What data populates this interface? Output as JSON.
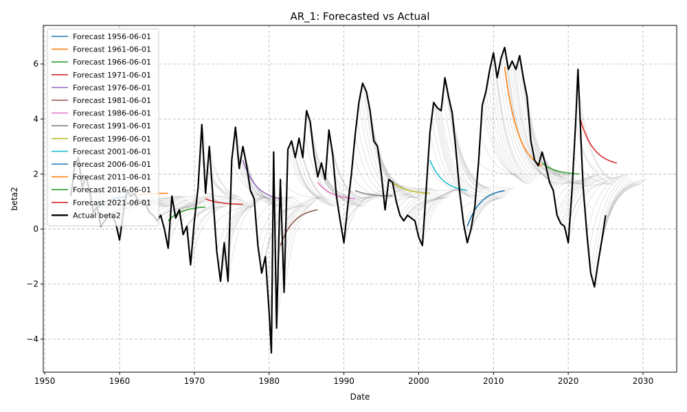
{
  "chart_data": {
    "type": "line",
    "title": "AR_1: Forecasted vs Actual",
    "xlabel": "Date",
    "ylabel": "beta2",
    "xlim": [
      1949.8,
      2034.5
    ],
    "ylim": [
      -5.2,
      7.4
    ],
    "x_ticks": [
      "1950",
      "1960",
      "1970",
      "1980",
      "1990",
      "2000",
      "2010",
      "2020",
      "2030"
    ],
    "y_ticks": [
      "−4",
      "−2",
      "0",
      "2",
      "4",
      "6"
    ],
    "grid": true,
    "legend_position": "upper left",
    "colors": {
      "actual": "#000000",
      "background_forecasts": "#808080",
      "grid": "#b0b0b0"
    },
    "actual": {
      "name": "Actual beta2",
      "points": [
        [
          1953.5,
          1.2
        ],
        [
          1954.0,
          2.3
        ],
        [
          1954.5,
          2.6
        ],
        [
          1955.0,
          1.5
        ],
        [
          1955.5,
          1.9
        ],
        [
          1956.0,
          1.4
        ],
        [
          1956.5,
          0.6
        ],
        [
          1957.0,
          0.8
        ],
        [
          1957.5,
          0.1
        ],
        [
          1958.0,
          0.3
        ],
        [
          1958.5,
          0.5
        ],
        [
          1959.0,
          0.5
        ],
        [
          1959.5,
          0.2
        ],
        [
          1960.0,
          -0.4
        ],
        [
          1960.5,
          0.6
        ],
        [
          1961.0,
          1.4
        ],
        [
          1961.5,
          1.2
        ],
        [
          1962.0,
          1.3
        ],
        [
          1962.5,
          1.0
        ],
        [
          1963.0,
          1.0
        ],
        [
          1963.5,
          0.9
        ],
        [
          1964.0,
          0.6
        ],
        [
          1964.5,
          0.5
        ],
        [
          1965.0,
          0.3
        ],
        [
          1965.5,
          0.5
        ],
        [
          1966.0,
          0.0
        ],
        [
          1966.5,
          -0.7
        ],
        [
          1967.0,
          1.2
        ],
        [
          1967.5,
          0.4
        ],
        [
          1968.0,
          0.7
        ],
        [
          1968.5,
          -0.2
        ],
        [
          1969.0,
          0.1
        ],
        [
          1969.5,
          -1.3
        ],
        [
          1970.0,
          0.3
        ],
        [
          1970.5,
          1.5
        ],
        [
          1971.0,
          3.8
        ],
        [
          1971.5,
          1.3
        ],
        [
          1972.0,
          3.0
        ],
        [
          1972.5,
          1.1
        ],
        [
          1973.0,
          -0.8
        ],
        [
          1973.5,
          -1.9
        ],
        [
          1974.0,
          -0.5
        ],
        [
          1974.5,
          -1.9
        ],
        [
          1975.0,
          2.5
        ],
        [
          1975.5,
          3.7
        ],
        [
          1976.0,
          2.2
        ],
        [
          1976.5,
          3.0
        ],
        [
          1977.0,
          2.3
        ],
        [
          1977.5,
          1.4
        ],
        [
          1978.0,
          1.1
        ],
        [
          1978.5,
          -0.6
        ],
        [
          1979.0,
          -1.6
        ],
        [
          1979.5,
          -1.0
        ],
        [
          1980.0,
          -3.0
        ],
        [
          1980.3,
          -4.5
        ],
        [
          1980.6,
          2.8
        ],
        [
          1981.0,
          -3.6
        ],
        [
          1981.5,
          1.8
        ],
        [
          1982.0,
          -2.3
        ],
        [
          1982.5,
          2.9
        ],
        [
          1983.0,
          3.2
        ],
        [
          1983.5,
          2.6
        ],
        [
          1984.0,
          3.3
        ],
        [
          1984.5,
          2.6
        ],
        [
          1985.0,
          4.3
        ],
        [
          1985.5,
          3.9
        ],
        [
          1986.0,
          2.7
        ],
        [
          1986.5,
          1.9
        ],
        [
          1987.0,
          2.4
        ],
        [
          1987.5,
          1.8
        ],
        [
          1988.0,
          3.6
        ],
        [
          1988.5,
          2.7
        ],
        [
          1989.0,
          1.2
        ],
        [
          1989.5,
          0.3
        ],
        [
          1990.0,
          -0.5
        ],
        [
          1990.5,
          0.8
        ],
        [
          1991.0,
          2.0
        ],
        [
          1991.5,
          3.4
        ],
        [
          1992.0,
          4.6
        ],
        [
          1992.5,
          5.3
        ],
        [
          1993.0,
          5.0
        ],
        [
          1993.5,
          4.3
        ],
        [
          1994.0,
          3.2
        ],
        [
          1994.5,
          3.0
        ],
        [
          1995.0,
          2.0
        ],
        [
          1995.5,
          0.7
        ],
        [
          1996.0,
          1.8
        ],
        [
          1996.5,
          1.7
        ],
        [
          1997.0,
          1.0
        ],
        [
          1997.5,
          0.5
        ],
        [
          1998.0,
          0.3
        ],
        [
          1998.5,
          0.5
        ],
        [
          1999.0,
          0.4
        ],
        [
          1999.5,
          0.3
        ],
        [
          2000.0,
          -0.3
        ],
        [
          2000.5,
          -0.6
        ],
        [
          2001.0,
          1.4
        ],
        [
          2001.5,
          3.5
        ],
        [
          2002.0,
          4.6
        ],
        [
          2002.5,
          4.4
        ],
        [
          2003.0,
          4.3
        ],
        [
          2003.5,
          5.5
        ],
        [
          2004.0,
          4.8
        ],
        [
          2004.5,
          4.2
        ],
        [
          2005.0,
          2.8
        ],
        [
          2005.5,
          1.3
        ],
        [
          2006.0,
          0.2
        ],
        [
          2006.5,
          -0.5
        ],
        [
          2007.0,
          0.0
        ],
        [
          2007.5,
          0.8
        ],
        [
          2008.0,
          2.4
        ],
        [
          2008.5,
          4.5
        ],
        [
          2009.0,
          5.0
        ],
        [
          2009.5,
          5.8
        ],
        [
          2010.0,
          6.4
        ],
        [
          2010.5,
          5.5
        ],
        [
          2011.0,
          6.2
        ],
        [
          2011.5,
          6.6
        ],
        [
          2012.0,
          5.8
        ],
        [
          2012.5,
          6.1
        ],
        [
          2013.0,
          5.8
        ],
        [
          2013.5,
          6.3
        ],
        [
          2014.0,
          5.5
        ],
        [
          2014.5,
          4.8
        ],
        [
          2015.0,
          3.2
        ],
        [
          2015.5,
          2.5
        ],
        [
          2016.0,
          2.3
        ],
        [
          2016.5,
          2.8
        ],
        [
          2017.0,
          2.3
        ],
        [
          2017.5,
          1.7
        ],
        [
          2018.0,
          1.4
        ],
        [
          2018.5,
          0.5
        ],
        [
          2019.0,
          0.2
        ],
        [
          2019.5,
          0.1
        ],
        [
          2020.0,
          -0.5
        ],
        [
          2020.5,
          1.4
        ],
        [
          2021.0,
          3.9
        ],
        [
          2021.3,
          5.8
        ],
        [
          2021.8,
          2.6
        ],
        [
          2022.0,
          1.5
        ],
        [
          2022.5,
          -0.2
        ],
        [
          2023.0,
          -1.6
        ],
        [
          2023.5,
          -2.1
        ],
        [
          2024.0,
          -1.2
        ],
        [
          2024.5,
          -0.4
        ],
        [
          2025.0,
          0.5
        ]
      ]
    },
    "series": [
      {
        "name": "Forecast 1956-06-01",
        "color": "#1f77b4",
        "origin": [
          1956.5,
          0.6
        ],
        "end": [
          1961.5,
          1.2
        ]
      },
      {
        "name": "Forecast 1961-06-01",
        "color": "#ff7f0e",
        "origin": [
          1961.5,
          1.2
        ],
        "end": [
          1966.5,
          1.3
        ]
      },
      {
        "name": "Forecast 1966-06-01",
        "color": "#2ca02c",
        "origin": [
          1966.5,
          0.3
        ],
        "end": [
          1971.5,
          0.8
        ]
      },
      {
        "name": "Forecast 1971-06-01",
        "color": "#d62728",
        "origin": [
          1971.5,
          1.1
        ],
        "end": [
          1976.5,
          0.9
        ]
      },
      {
        "name": "Forecast 1976-06-01",
        "color": "#9467bd",
        "origin": [
          1976.5,
          2.5
        ],
        "end": [
          1981.5,
          1.1
        ]
      },
      {
        "name": "Forecast 1981-06-01",
        "color": "#8c564b",
        "origin": [
          1981.5,
          -0.6
        ],
        "end": [
          1986.5,
          0.7
        ]
      },
      {
        "name": "Forecast 1986-06-01",
        "color": "#e377c2",
        "origin": [
          1986.5,
          1.7
        ],
        "end": [
          1991.5,
          1.1
        ]
      },
      {
        "name": "Forecast 1991-06-01",
        "color": "#7f7f7f",
        "origin": [
          1991.5,
          1.4
        ],
        "end": [
          1996.5,
          1.2
        ]
      },
      {
        "name": "Forecast 1996-06-01",
        "color": "#bcbd22",
        "origin": [
          1996.5,
          1.7
        ],
        "end": [
          2001.5,
          1.3
        ]
      },
      {
        "name": "Forecast 2001-06-01",
        "color": "#17becf",
        "origin": [
          2001.5,
          2.5
        ],
        "end": [
          2006.5,
          1.4
        ]
      },
      {
        "name": "Forecast 2006-06-01",
        "color": "#1f77b4",
        "origin": [
          2006.5,
          0.1
        ],
        "end": [
          2011.5,
          1.4
        ]
      },
      {
        "name": "Forecast 2011-06-01",
        "color": "#ff7f0e",
        "origin": [
          2011.5,
          5.9
        ],
        "end": [
          2016.5,
          2.3
        ]
      },
      {
        "name": "Forecast 2016-06-01",
        "color": "#2ca02c",
        "origin": [
          2016.5,
          2.4
        ],
        "end": [
          2021.5,
          2.0
        ]
      },
      {
        "name": "Forecast 2021-06-01",
        "color": "#d62728",
        "origin": [
          2021.5,
          4.1
        ],
        "end": [
          2026.5,
          2.4
        ]
      }
    ],
    "legend": [
      "Forecast 1956-06-01",
      "Forecast 1961-06-01",
      "Forecast 1966-06-01",
      "Forecast 1971-06-01",
      "Forecast 1976-06-01",
      "Forecast 1981-06-01",
      "Forecast 1986-06-01",
      "Forecast 1991-06-01",
      "Forecast 1996-06-01",
      "Forecast 2001-06-01",
      "Forecast 2006-06-01",
      "Forecast 2011-06-01",
      "Forecast 2016-06-01",
      "Forecast 2021-06-01",
      "Actual beta2"
    ]
  }
}
